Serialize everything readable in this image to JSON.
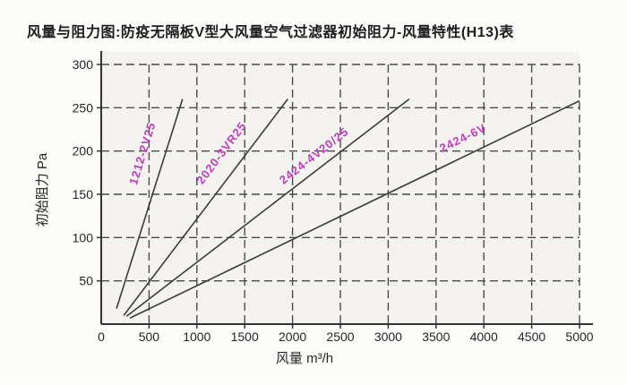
{
  "title": "风量与阻力图:防疫无隔板V型大风量空气过滤器初始阻力-风量特性(H13)表",
  "colors": {
    "axis": "#333333",
    "grid": "#4b4b4b",
    "line": "#3c3c3c",
    "tick_text": "#262626",
    "series_label": "#c23ac2",
    "plot_bg": "#f4f3ef"
  },
  "chart_data": {
    "type": "line",
    "title": "风量与阻力图:防疫无隔板V型大风量空气过滤器初始阻力-风量特性(H13)表",
    "xlabel": "风量  m³/h",
    "ylabel": "初始阻力 Pa",
    "xlim": [
      0,
      5000
    ],
    "ylim": [
      0,
      300
    ],
    "xticks": [
      0,
      500,
      1000,
      1500,
      2000,
      2500,
      3000,
      3500,
      4000,
      4500,
      5000
    ],
    "yticks": [
      50,
      100,
      150,
      200,
      250,
      300
    ],
    "grid": true,
    "grid_style": "dashed",
    "legend_position": "inline-rotated-line-labels",
    "series": [
      {
        "name": "1212-2V25",
        "points": [
          [
            160,
            18
          ],
          [
            850,
            260
          ]
        ],
        "label_pos": [
          470,
          196
        ],
        "label_angle": -73
      },
      {
        "name": "2020-3VR25",
        "points": [
          [
            235,
            10
          ],
          [
            1950,
            260
          ]
        ],
        "label_pos": [
          1290,
          195
        ],
        "label_angle": -53
      },
      {
        "name": "2424-4V20/25",
        "points": [
          [
            265,
            9
          ],
          [
            3220,
            260
          ]
        ],
        "label_pos": [
          2250,
          191
        ],
        "label_angle": -38
      },
      {
        "name": "2424-6V",
        "points": [
          [
            300,
            7
          ],
          [
            5000,
            258
          ]
        ],
        "label_pos": [
          3800,
          211
        ],
        "label_angle": -26
      }
    ]
  }
}
